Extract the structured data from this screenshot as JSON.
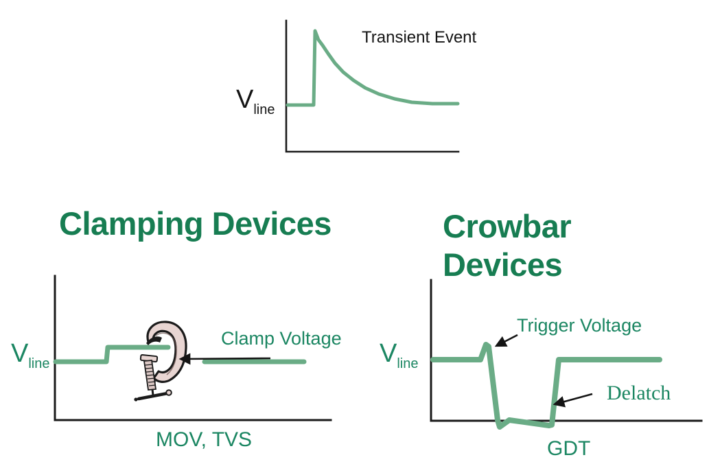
{
  "palette": {
    "wave_green": "#6aac86",
    "title_green": "#177d52",
    "label_green": "#1b8662",
    "ink": "#141414",
    "clamp_fill": "#e8d5d2"
  },
  "transient_chart": {
    "title": "Transient Event",
    "v_label": "V",
    "v_label_sub": "line"
  },
  "clamping_chart": {
    "title": "Clamping Devices",
    "v_label": "V",
    "v_label_sub": "line",
    "clamp_label": "Clamp Voltage",
    "caption": "MOV, TVS"
  },
  "crowbar_chart": {
    "title_line1": "Crowbar",
    "title_line2": "Devices",
    "v_label": "V",
    "v_label_sub": "line",
    "trigger_label": "Trigger Voltage",
    "delatch_label": "Delatch",
    "caption": "GDT"
  },
  "axes": {
    "transient": [
      [
        417,
        30
      ],
      [
        417,
        221
      ],
      [
        668,
        221
      ]
    ],
    "clamping": [
      [
        80,
        402
      ],
      [
        80,
        612
      ],
      [
        482,
        612
      ]
    ],
    "crowbar": [
      [
        628,
        408
      ],
      [
        628,
        613
      ],
      [
        1022,
        613
      ]
    ]
  },
  "waveforms": {
    "transient": [
      [
        419,
        153
      ],
      [
        457,
        153
      ],
      [
        459,
        45
      ],
      [
        464,
        58
      ],
      [
        470,
        66
      ],
      [
        478,
        78
      ],
      [
        488,
        92
      ],
      [
        500,
        105
      ],
      [
        515,
        117
      ],
      [
        532,
        128
      ],
      [
        552,
        137
      ],
      [
        575,
        144
      ],
      [
        600,
        149
      ],
      [
        630,
        151
      ],
      [
        667,
        151
      ]
    ],
    "clamping_before": [
      [
        81,
        527
      ],
      [
        155,
        527
      ],
      [
        157,
        506
      ],
      [
        245,
        506
      ]
    ],
    "clamping_after": [
      [
        298,
        527
      ],
      [
        443,
        527
      ]
    ],
    "crowbar": [
      [
        631,
        524
      ],
      [
        700,
        524
      ],
      [
        708,
        502
      ],
      [
        712,
        505
      ],
      [
        725,
        612
      ],
      [
        728,
        622
      ],
      [
        742,
        612
      ],
      [
        800,
        620
      ],
      [
        804,
        619
      ],
      [
        814,
        524
      ],
      [
        961,
        524
      ]
    ]
  },
  "arrows": {
    "clamp": {
      "from": [
        394,
        522
      ],
      "to": [
        263,
        523
      ]
    },
    "trigger": {
      "from": [
        754,
        488
      ],
      "to": [
        723,
        504
      ]
    },
    "delatch": {
      "from": [
        863,
        574
      ],
      "to": [
        808,
        589
      ]
    }
  },
  "chart_data": [
    {
      "type": "line",
      "title": "Transient Event",
      "ylabel": "Vline",
      "xlabel": "",
      "description": "Line voltage flat at Vline, abrupt vertical spike, exponential decay back down to Vline.",
      "axis_ticks": "none (qualitative sketch)"
    },
    {
      "type": "line",
      "title": "Clamping Devices",
      "caption": "MOV, TVS",
      "ylabel": "Vline",
      "annotations": [
        "Clamp Voltage"
      ],
      "description": "Voltage flat at Vline, steps up and is held at the clamp voltage during the transient (shown gripped by a C-clamp), then returns to Vline.",
      "axis_ticks": "none (qualitative sketch)"
    },
    {
      "type": "line",
      "title": "Crowbar Devices",
      "caption": "GDT",
      "ylabel": "Vline",
      "annotations": [
        "Trigger Voltage",
        "Delatch"
      ],
      "description": "Voltage flat at Vline, small spike to the trigger voltage, crowbars down to near zero along the axis, then delatches and snaps back up to Vline.",
      "axis_ticks": "none (qualitative sketch)"
    }
  ]
}
